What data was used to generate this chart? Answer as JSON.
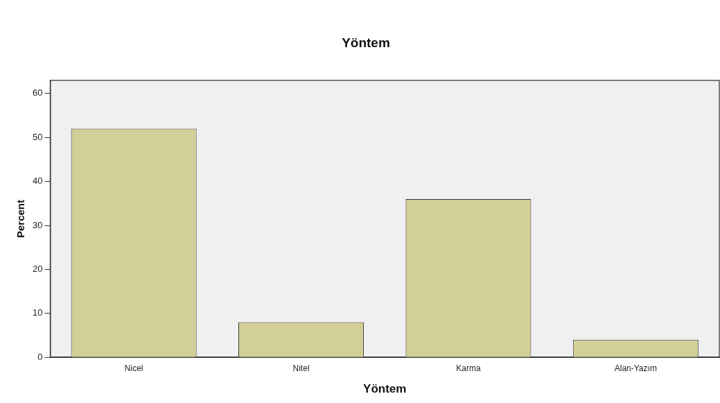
{
  "chart_data": {
    "type": "bar",
    "title": "Yöntem",
    "xlabel": "Yöntem",
    "ylabel": "Percent",
    "categories": [
      "Nicel",
      "Nitel",
      "Karma",
      "Alan-Yazım"
    ],
    "values": [
      52,
      8,
      36,
      4
    ],
    "color": "#d3cf98",
    "ylim": [
      0,
      63
    ],
    "yticks": [
      0,
      10,
      20,
      30,
      40,
      50,
      60
    ],
    "grid": false,
    "legend": false
  }
}
